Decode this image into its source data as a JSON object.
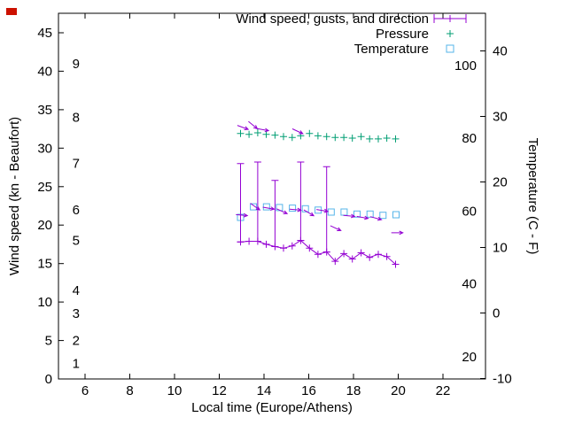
{
  "window": {
    "background": "#ffffff",
    "corner_marker_color": "#cc1100"
  },
  "chart_data": {
    "type": "line",
    "title": "",
    "xlabel": "Local time (Europe/Athens)",
    "ylabel_left": "Wind speed (kn - Beaufort)",
    "ylabel_right": "Temperature (C - F)",
    "grid": "off",
    "x_axis": {
      "ticks": [
        6,
        8,
        10,
        12,
        14,
        16,
        18,
        20,
        22
      ],
      "range": [
        4.8,
        23.9
      ]
    },
    "y_left_axis": {
      "unit": "kn",
      "ticks": [
        0,
        5,
        10,
        15,
        20,
        25,
        30,
        35,
        40,
        45
      ],
      "range": [
        0,
        47.5
      ],
      "beaufort_scale": [
        {
          "beaufort": "1",
          "kn": 2
        },
        {
          "beaufort": "2",
          "kn": 5
        },
        {
          "beaufort": "3",
          "kn": 8.5
        },
        {
          "beaufort": "4",
          "kn": 11.5
        },
        {
          "beaufort": "5",
          "kn": 18
        },
        {
          "beaufort": "6",
          "kn": 22
        },
        {
          "beaufort": "7",
          "kn": 28
        },
        {
          "beaufort": "8",
          "kn": 34
        },
        {
          "beaufort": "9",
          "kn": 41
        }
      ]
    },
    "y_right_axis": {
      "unit": "C",
      "ticks_c": [
        -10,
        0,
        10,
        20,
        30,
        40
      ],
      "range_c": [
        -10.2,
        45.8
      ],
      "fahrenheit_labels": [
        20,
        40,
        60,
        80,
        100
      ]
    },
    "legend": {
      "position": "top-right-inside",
      "entries": [
        {
          "label": "Wind speed, gusts, and direction",
          "marker": "errorbar-plus",
          "color": "#9400d3"
        },
        {
          "label": "Pressure",
          "marker": "plus",
          "color": "#009e73"
        },
        {
          "label": "Temperature",
          "marker": "open-square",
          "color": "#56b4e9"
        }
      ]
    },
    "series": {
      "wind": {
        "name": "Wind speed, gusts, and direction",
        "color": "#9400d3",
        "style": "line with plus markers and gust errorbars",
        "points": [
          {
            "t": 12.95,
            "kn": 17.8,
            "gust": 28.0
          },
          {
            "t": 13.33,
            "kn": 17.9
          },
          {
            "t": 13.72,
            "kn": 17.9,
            "gust": 28.2
          },
          {
            "t": 14.1,
            "kn": 17.5
          },
          {
            "t": 14.49,
            "kn": 17.2,
            "gust": 25.8
          },
          {
            "t": 14.87,
            "kn": 17.0
          },
          {
            "t": 15.26,
            "kn": 17.3
          },
          {
            "t": 15.64,
            "kn": 18.0,
            "gust": 28.2
          },
          {
            "t": 16.03,
            "kn": 17.0
          },
          {
            "t": 16.41,
            "kn": 16.2
          },
          {
            "t": 16.8,
            "kn": 16.5,
            "gust": 27.6
          },
          {
            "t": 17.18,
            "kn": 15.3
          },
          {
            "t": 17.57,
            "kn": 16.3
          },
          {
            "t": 17.95,
            "kn": 15.6
          },
          {
            "t": 18.34,
            "kn": 16.4
          },
          {
            "t": 18.72,
            "kn": 15.8
          },
          {
            "t": 19.11,
            "kn": 16.2
          },
          {
            "t": 19.49,
            "kn": 15.9
          },
          {
            "t": 19.88,
            "kn": 14.9
          }
        ]
      },
      "wind_direction": {
        "color": "#9400d3",
        "style": "arrows",
        "arrows": [
          {
            "t": 13.05,
            "kn": 32.7,
            "angle_deg": 20
          },
          {
            "t": 13.5,
            "kn": 33.0,
            "angle_deg": 40
          },
          {
            "t": 13.95,
            "kn": 32.4,
            "angle_deg": 10
          },
          {
            "t": 15.5,
            "kn": 32.2,
            "angle_deg": 25
          },
          {
            "t": 13.0,
            "kn": 21.3,
            "angle_deg": 5
          },
          {
            "t": 13.6,
            "kn": 22.4,
            "angle_deg": 35
          },
          {
            "t": 14.2,
            "kn": 22.2,
            "angle_deg": 10
          },
          {
            "t": 14.8,
            "kn": 21.8,
            "angle_deg": 25
          },
          {
            "t": 15.4,
            "kn": 22.0,
            "angle_deg": 5
          },
          {
            "t": 16.0,
            "kn": 21.6,
            "angle_deg": 30
          },
          {
            "t": 16.6,
            "kn": 21.9,
            "angle_deg": 10
          },
          {
            "t": 17.2,
            "kn": 19.6,
            "angle_deg": 25
          },
          {
            "t": 17.8,
            "kn": 21.2,
            "angle_deg": 5
          },
          {
            "t": 18.4,
            "kn": 21.0,
            "angle_deg": 10
          },
          {
            "t": 19.0,
            "kn": 20.9,
            "angle_deg": 15
          },
          {
            "t": 19.95,
            "kn": 19.0,
            "angle_deg": 0
          }
        ]
      },
      "pressure": {
        "name": "Pressure",
        "color": "#009e73",
        "style": "plus markers",
        "axis": "unlabeled (plotted near 80F level)",
        "points": [
          {
            "t": 12.95,
            "level": 31.9
          },
          {
            "t": 13.33,
            "level": 31.8
          },
          {
            "t": 13.72,
            "level": 32.0
          },
          {
            "t": 14.1,
            "level": 31.8
          },
          {
            "t": 14.49,
            "level": 31.7
          },
          {
            "t": 14.87,
            "level": 31.5
          },
          {
            "t": 15.26,
            "level": 31.4
          },
          {
            "t": 15.64,
            "level": 31.6
          },
          {
            "t": 16.03,
            "level": 31.9
          },
          {
            "t": 16.41,
            "level": 31.6
          },
          {
            "t": 16.8,
            "level": 31.5
          },
          {
            "t": 17.18,
            "level": 31.4
          },
          {
            "t": 17.57,
            "level": 31.4
          },
          {
            "t": 17.95,
            "level": 31.3
          },
          {
            "t": 18.34,
            "level": 31.5
          },
          {
            "t": 18.72,
            "level": 31.2
          },
          {
            "t": 19.11,
            "level": 31.2
          },
          {
            "t": 19.49,
            "level": 31.3
          },
          {
            "t": 19.88,
            "level": 31.2
          }
        ]
      },
      "temperature": {
        "name": "Temperature",
        "color": "#56b4e9",
        "style": "open square markers",
        "points": [
          {
            "t": 12.95,
            "c": 14.6
          },
          {
            "t": 13.53,
            "c": 16.2
          },
          {
            "t": 14.11,
            "c": 16.2
          },
          {
            "t": 14.69,
            "c": 16.1
          },
          {
            "t": 15.27,
            "c": 16.0
          },
          {
            "t": 15.85,
            "c": 15.9
          },
          {
            "t": 16.42,
            "c": 15.7
          },
          {
            "t": 17.0,
            "c": 15.4
          },
          {
            "t": 17.58,
            "c": 15.4
          },
          {
            "t": 18.16,
            "c": 15.1
          },
          {
            "t": 18.74,
            "c": 15.1
          },
          {
            "t": 19.32,
            "c": 14.9
          },
          {
            "t": 19.9,
            "c": 15.0
          }
        ]
      }
    }
  }
}
